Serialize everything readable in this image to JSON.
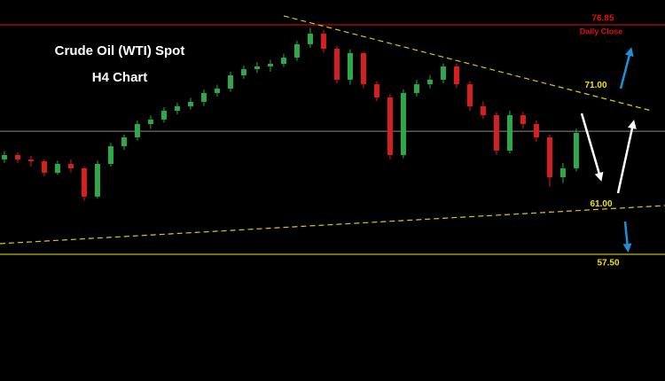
{
  "chart_data": {
    "type": "candlestick",
    "title": "Crude Oil (WTI) Spot",
    "subtitle": "H4 Chart",
    "xlim": [
      -0.33,
      49.67
    ],
    "ylim": [
      46.82,
      78.94
    ],
    "up_color": "#2ea84a",
    "down_color": "#d42020",
    "open": [
      65.5,
      65.87,
      65.49,
      65.34,
      64.37,
      65.12,
      64.75,
      62.36,
      65.12,
      66.61,
      67.36,
      68.48,
      68.86,
      69.6,
      69.98,
      70.35,
      71.1,
      71.47,
      72.59,
      73.11,
      73.34,
      73.56,
      74.08,
      75.21,
      76.1,
      74.83,
      72.22,
      74.46,
      71.84,
      70.72,
      65.87,
      71.1,
      71.84,
      72.22,
      73.34,
      71.84,
      69.98,
      69.23,
      66.24,
      69.23,
      68.48,
      67.36,
      64.0,
      64.75
    ],
    "high": [
      66.2,
      66.1,
      65.8,
      65.5,
      65.4,
      65.5,
      64.9,
      65.4,
      66.9,
      67.6,
      68.8,
      69.2,
      69.9,
      70.3,
      70.7,
      71.4,
      71.8,
      72.9,
      73.4,
      73.7,
      73.9,
      74.4,
      75.5,
      76.6,
      76.4,
      75.1,
      74.8,
      74.6,
      72.1,
      71.0,
      71.4,
      72.2,
      72.6,
      73.6,
      73.6,
      72.1,
      70.4,
      69.5,
      69.6,
      69.5,
      68.8,
      67.6,
      65.2,
      68.1
    ],
    "low": [
      65.2,
      65.2,
      64.9,
      64.1,
      64.2,
      64.4,
      62.0,
      62.2,
      64.9,
      66.3,
      67.1,
      68.1,
      68.6,
      69.3,
      69.7,
      70.0,
      70.8,
      71.2,
      72.3,
      72.8,
      72.9,
      73.3,
      73.8,
      74.9,
      74.5,
      71.9,
      71.8,
      71.5,
      70.4,
      65.5,
      65.6,
      70.8,
      71.5,
      71.9,
      71.5,
      69.6,
      68.9,
      65.9,
      66.0,
      68.1,
      67.0,
      63.2,
      63.5,
      64.5
    ],
    "close": [
      65.87,
      65.49,
      65.34,
      64.37,
      65.12,
      64.75,
      62.36,
      65.12,
      66.61,
      67.36,
      68.48,
      68.86,
      69.6,
      69.98,
      70.35,
      71.1,
      71.47,
      72.59,
      73.11,
      73.34,
      73.56,
      74.08,
      75.21,
      76.1,
      74.83,
      72.22,
      74.46,
      71.84,
      70.72,
      65.87,
      71.1,
      71.84,
      72.22,
      73.34,
      71.84,
      69.98,
      69.23,
      66.24,
      69.23,
      68.48,
      67.36,
      64.0,
      64.75,
      67.74
    ],
    "price_line": {
      "value": 67.88,
      "color": "#8a8a8a"
    },
    "levels": [
      {
        "value": 76.85,
        "label": "76.85",
        "note": "Daily Close",
        "color": "#e01010",
        "line": true
      },
      {
        "value": 71.0,
        "label": "71.00",
        "color": "#f0e010",
        "line": false
      },
      {
        "value": 61.0,
        "label": "61.00",
        "color": "#f0e010",
        "line": false
      },
      {
        "value": 57.5,
        "label": "57.50",
        "color": "#f0e010",
        "line": true
      }
    ],
    "trendlines": [
      {
        "x": [
          21,
          48.67
        ],
        "y": [
          77.6,
          69.6
        ],
        "color": "#d8c818"
      },
      {
        "x": [
          -0.33,
          49.67
        ],
        "y": [
          58.4,
          61.61
        ],
        "color": "#d8c818"
      }
    ]
  }
}
